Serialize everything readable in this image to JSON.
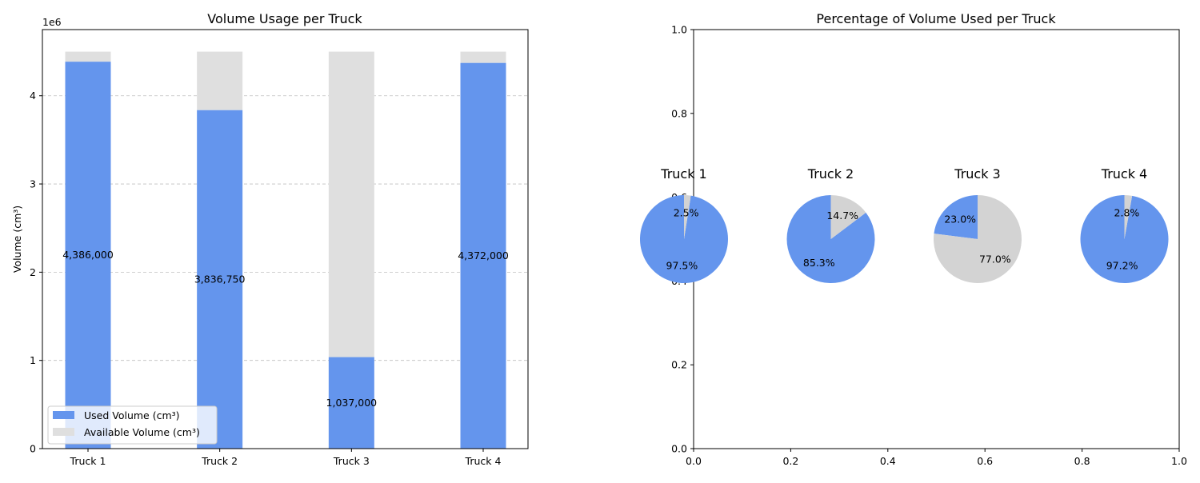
{
  "chart_data": [
    {
      "type": "bar",
      "stacked": true,
      "title": "Volume Usage per Truck",
      "ylabel": "Volume (cm³)",
      "xlabel": "",
      "categories": [
        "Truck 1",
        "Truck 2",
        "Truck 3",
        "Truck 4"
      ],
      "series": [
        {
          "name": "Used Volume (cm³)",
          "values": [
            4386000,
            3836750,
            1037000,
            4372000
          ],
          "color": "#6495ed"
        },
        {
          "name": "Available Volume (cm³)",
          "values": [
            114000,
            663250,
            3463000,
            128000
          ],
          "color": "#dfdfdf"
        }
      ],
      "data_labels": [
        "4,386,000",
        "3,836,750",
        "1,037,000",
        "4,372,000"
      ],
      "ylim": [
        0,
        4750000
      ],
      "yticks": [
        0,
        1000000,
        2000000,
        3000000,
        4000000
      ],
      "ytick_labels": [
        "0",
        "1",
        "2",
        "3",
        "4"
      ],
      "y_offset_label": "1e6",
      "grid": "y",
      "legend": "lower-left"
    },
    {
      "type": "pie",
      "title": "Percentage of Volume Used per Truck",
      "axes_ticks": {
        "x": [
          "0.0",
          "0.2",
          "0.4",
          "0.6",
          "0.8",
          "1.0"
        ],
        "y": [
          "0.0",
          "0.2",
          "0.4",
          "0.6",
          "0.8",
          "1.0"
        ]
      },
      "pies": [
        {
          "title": "Truck 1",
          "slices": [
            {
              "value": 97.5,
              "label": "97.5%",
              "color": "#6495ed"
            },
            {
              "value": 2.5,
              "label": "2.5%",
              "color": "#d3d3d3"
            }
          ]
        },
        {
          "title": "Truck 2",
          "slices": [
            {
              "value": 85.3,
              "label": "85.3%",
              "color": "#6495ed"
            },
            {
              "value": 14.7,
              "label": "14.7%",
              "color": "#d3d3d3"
            }
          ]
        },
        {
          "title": "Truck 3",
          "slices": [
            {
              "value": 23.0,
              "label": "23.0%",
              "color": "#6495ed"
            },
            {
              "value": 77.0,
              "label": "77.0%",
              "color": "#d3d3d3"
            }
          ]
        },
        {
          "title": "Truck 4",
          "slices": [
            {
              "value": 97.2,
              "label": "97.2%",
              "color": "#6495ed"
            },
            {
              "value": 2.8,
              "label": "2.8%",
              "color": "#d3d3d3"
            }
          ]
        }
      ]
    }
  ]
}
